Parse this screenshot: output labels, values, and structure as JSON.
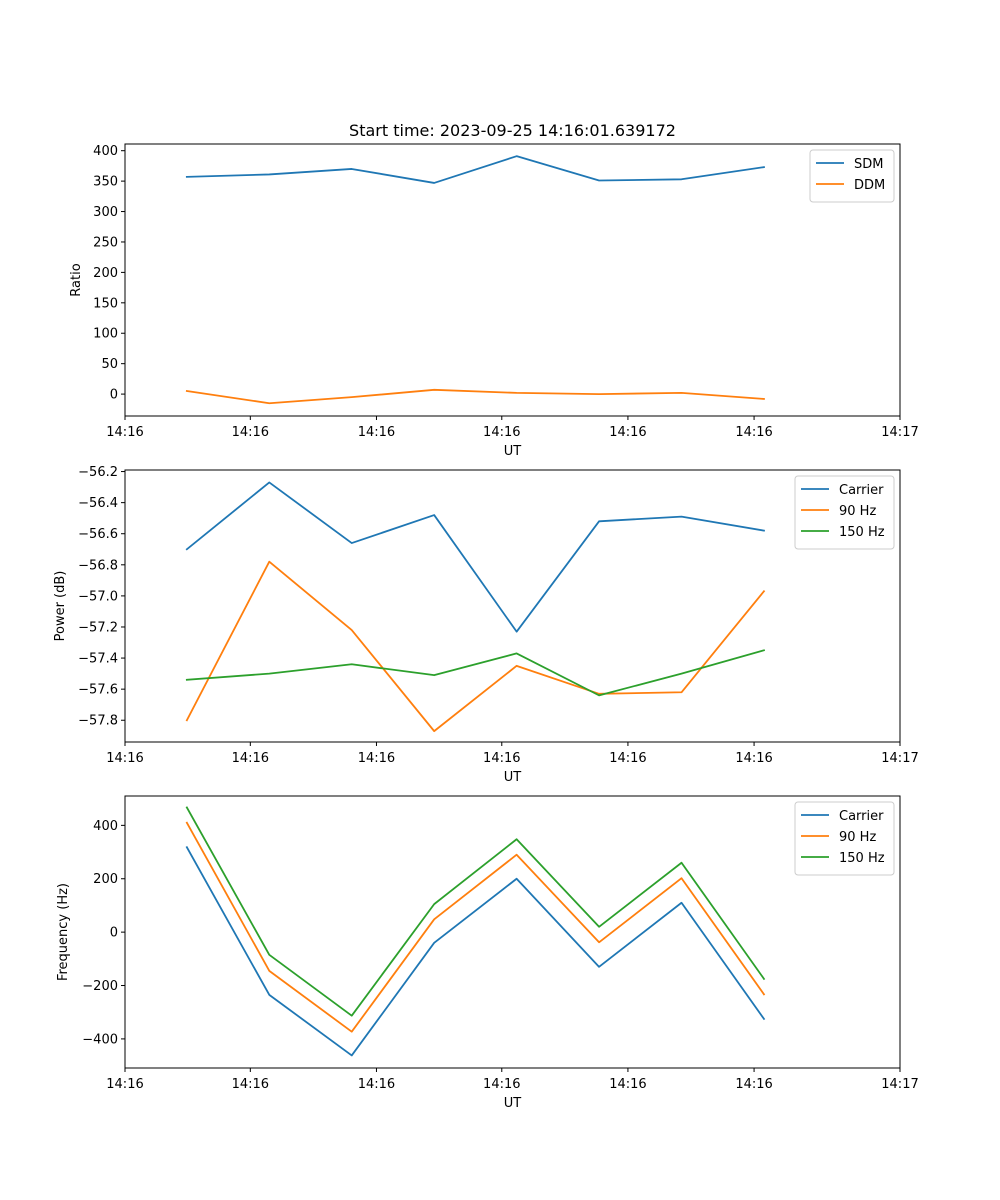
{
  "figure_title": "Start time: 2023-09-25 14:16:01.639172",
  "chart_data": [
    {
      "type": "line",
      "title": "Start time: 2023-09-25 14:16:01.639172",
      "xlabel": "UT",
      "ylabel": "Ratio",
      "x_index": [
        0,
        1,
        2,
        3,
        4,
        5,
        6,
        7
      ],
      "xlim": [
        -0.75,
        8.65
      ],
      "ylim": [
        -36,
        411
      ],
      "yticks": [
        0,
        50,
        100,
        150,
        200,
        250,
        300,
        350,
        400
      ],
      "ytick_labels": [
        "0",
        "50",
        "100",
        "150",
        "200",
        "250",
        "300",
        "350",
        "400"
      ],
      "xticks": [
        -0.75,
        0.77,
        2.3,
        3.82,
        5.35,
        6.88,
        8.65
      ],
      "xtick_labels": [
        "14:16",
        "14:16",
        "14:16",
        "14:16",
        "14:16",
        "14:16",
        "14:17"
      ],
      "legend": "top-right",
      "series": [
        {
          "name": "SDM",
          "color": "#1f77b4",
          "values": [
            357,
            361,
            370,
            347,
            391,
            351,
            353,
            373
          ]
        },
        {
          "name": "DDM",
          "color": "#ff7f0e",
          "values": [
            5,
            -15,
            -5,
            7,
            2,
            0,
            2,
            -8
          ]
        }
      ]
    },
    {
      "type": "line",
      "xlabel": "UT",
      "ylabel": "Power (dB)",
      "x_index": [
        0,
        1,
        2,
        3,
        4,
        5,
        6,
        7
      ],
      "xlim": [
        -0.75,
        8.65
      ],
      "ylim": [
        -57.94,
        -56.19
      ],
      "yticks": [
        -57.8,
        -57.6,
        -57.4,
        -57.2,
        -57.0,
        -56.8,
        -56.6,
        -56.4,
        -56.2
      ],
      "ytick_labels": [
        "−57.8",
        "−57.6",
        "−57.4",
        "−57.2",
        "−57.0",
        "−56.8",
        "−56.6",
        "−56.4",
        "−56.2"
      ],
      "xticks": [
        -0.75,
        0.77,
        2.3,
        3.82,
        5.35,
        6.88,
        8.65
      ],
      "xtick_labels": [
        "14:16",
        "14:16",
        "14:16",
        "14:16",
        "14:16",
        "14:16",
        "14:17"
      ],
      "legend": "top-right",
      "series": [
        {
          "name": "Carrier",
          "color": "#1f77b4",
          "values": [
            -56.7,
            -56.27,
            -56.66,
            -56.48,
            -57.23,
            -56.52,
            -56.49,
            -56.58
          ]
        },
        {
          "name": "90 Hz",
          "color": "#ff7f0e",
          "values": [
            -57.8,
            -56.78,
            -57.22,
            -57.87,
            -57.45,
            -57.63,
            -57.62,
            -56.97
          ]
        },
        {
          "name": "150 Hz",
          "color": "#2ca02c",
          "values": [
            -57.54,
            -57.5,
            -57.44,
            -57.51,
            -57.37,
            -57.64,
            -57.5,
            -57.35
          ]
        }
      ]
    },
    {
      "type": "line",
      "xlabel": "UT",
      "ylabel": "Frequency (Hz)",
      "x_index": [
        0,
        1,
        2,
        3,
        4,
        5,
        6,
        7
      ],
      "xlim": [
        -0.75,
        8.65
      ],
      "ylim": [
        -509,
        510
      ],
      "yticks": [
        -400,
        -200,
        0,
        200,
        400
      ],
      "ytick_labels": [
        "−400",
        "−200",
        "0",
        "200",
        "400"
      ],
      "xticks": [
        -0.75,
        0.77,
        2.3,
        3.82,
        5.35,
        6.88,
        8.65
      ],
      "xtick_labels": [
        "14:16",
        "14:16",
        "14:16",
        "14:16",
        "14:16",
        "14:16",
        "14:17"
      ],
      "legend": "top-right",
      "series": [
        {
          "name": "Carrier",
          "color": "#1f77b4",
          "values": [
            318,
            -235,
            -462,
            -40,
            200,
            -130,
            110,
            -325
          ]
        },
        {
          "name": "90 Hz",
          "color": "#ff7f0e",
          "values": [
            410,
            -145,
            -373,
            48,
            290,
            -38,
            202,
            -233
          ]
        },
        {
          "name": "150 Hz",
          "color": "#2ca02c",
          "values": [
            467,
            -85,
            -313,
            105,
            348,
            20,
            260,
            -175
          ]
        }
      ]
    }
  ]
}
